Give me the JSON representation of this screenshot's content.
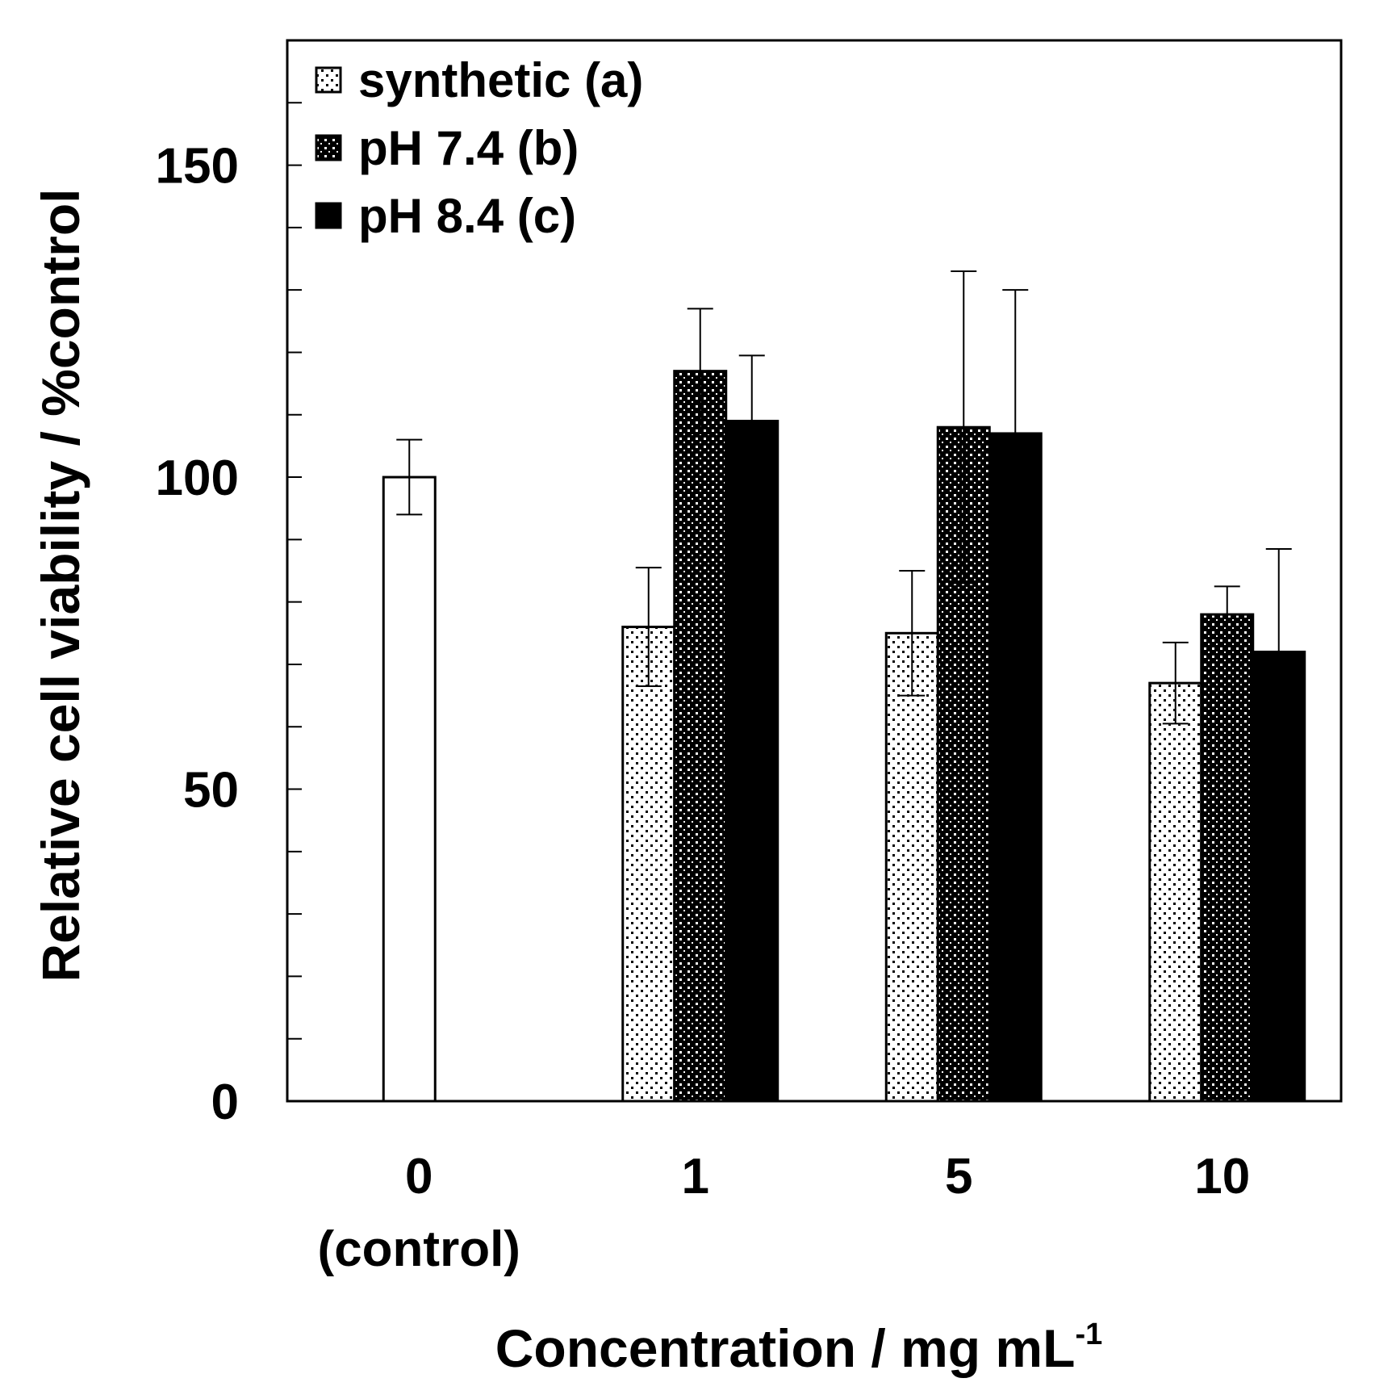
{
  "chart_data": {
    "type": "bar",
    "xlabel": "Concentration / mg mL",
    "xlabel_superscript": "-1",
    "ylabel": "Relative cell viability / %control",
    "ylim": [
      0,
      170
    ],
    "yticks": [
      0,
      50,
      100,
      150
    ],
    "y_minor_step": 10,
    "categories": [
      {
        "label": "0",
        "sublabel": "(control)"
      },
      {
        "label": "1",
        "sublabel": ""
      },
      {
        "label": "5",
        "sublabel": ""
      },
      {
        "label": "10",
        "sublabel": ""
      }
    ],
    "control": {
      "name": "control",
      "value": 100,
      "error": 6
    },
    "series": [
      {
        "name": "synthetic (a)",
        "fill": "dots-light",
        "values": [
          null,
          76,
          75,
          67
        ],
        "errors": [
          null,
          9.5,
          10,
          6.5
        ]
      },
      {
        "name": "pH 7.4 (b)",
        "fill": "dots-dark",
        "values": [
          null,
          117,
          108,
          78
        ],
        "errors": [
          null,
          10,
          25,
          4.5
        ]
      },
      {
        "name": "pH 8.4 (c)",
        "fill": "solid",
        "values": [
          null,
          109,
          107,
          72
        ],
        "errors": [
          null,
          10.5,
          23,
          16.5
        ]
      }
    ],
    "legend_position": "top-left",
    "grid": false
  }
}
